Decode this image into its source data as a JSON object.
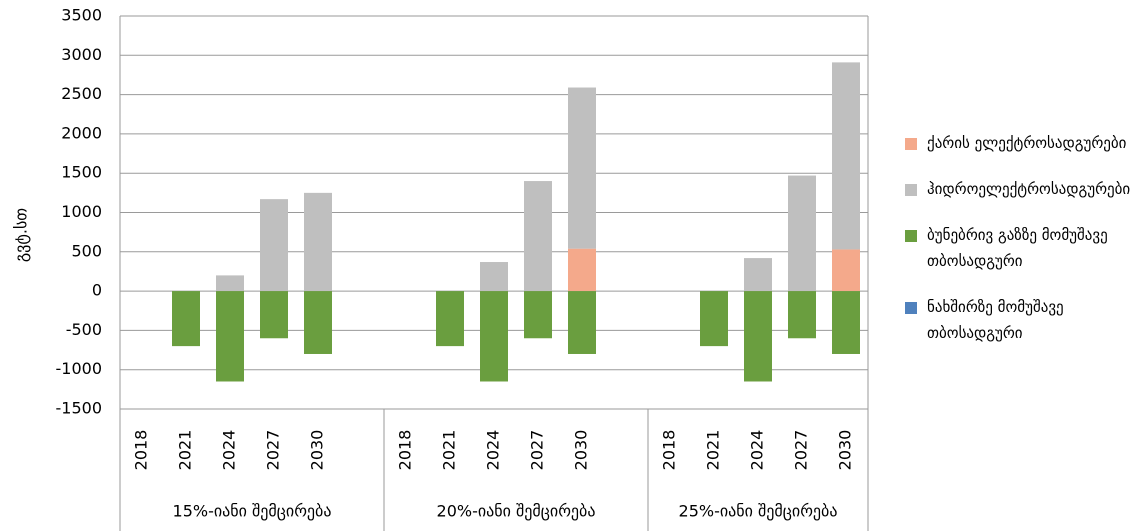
{
  "chart_data": {
    "type": "stacked_bar",
    "y_label": "გვტ.სთ",
    "categories": [
      "2018",
      "2021",
      "2024",
      "2027",
      "2030",
      "2018",
      "2021",
      "2024",
      "2027",
      "2030",
      "2018",
      "2021",
      "2024",
      "2027",
      "2030"
    ],
    "groups": [
      "15%-იანი შემცირება",
      "20%-იანი შემცირება",
      "25%-იანი შემცირება"
    ],
    "series": [
      {
        "name": "ქარის ელექტროსადგურები",
        "color": "#f4a98b",
        "values": [
          0,
          0,
          0,
          0,
          0,
          0,
          0,
          0,
          0,
          540,
          0,
          0,
          0,
          0,
          530
        ]
      },
      {
        "name": "ჰიდროელექტროსადგურები",
        "color": "#bfbfbf",
        "values": [
          0,
          0,
          200,
          1170,
          1250,
          0,
          0,
          370,
          1400,
          2050,
          0,
          0,
          420,
          1470,
          2380
        ]
      },
      {
        "name": "ბუნებრივ გაზზე მომუშავე თბოსადგური",
        "color": "#6a9e3f",
        "values": [
          0,
          -700,
          -1150,
          -600,
          -800,
          0,
          -700,
          -1150,
          -600,
          -800,
          0,
          -700,
          -1150,
          -600,
          -800
        ]
      },
      {
        "name": "ნახშირზე მომუშავე თბოსადგური",
        "color": "#4f81bd",
        "values": [
          0,
          0,
          0,
          0,
          0,
          0,
          0,
          0,
          0,
          0,
          0,
          0,
          0,
          0,
          0
        ]
      }
    ],
    "ylim": [
      -1500,
      3500
    ],
    "yticks": [
      -1500,
      -1000,
      -500,
      0,
      500,
      1000,
      1500,
      2000,
      2500,
      3000,
      3500
    ],
    "grid": true,
    "legend": "right"
  }
}
